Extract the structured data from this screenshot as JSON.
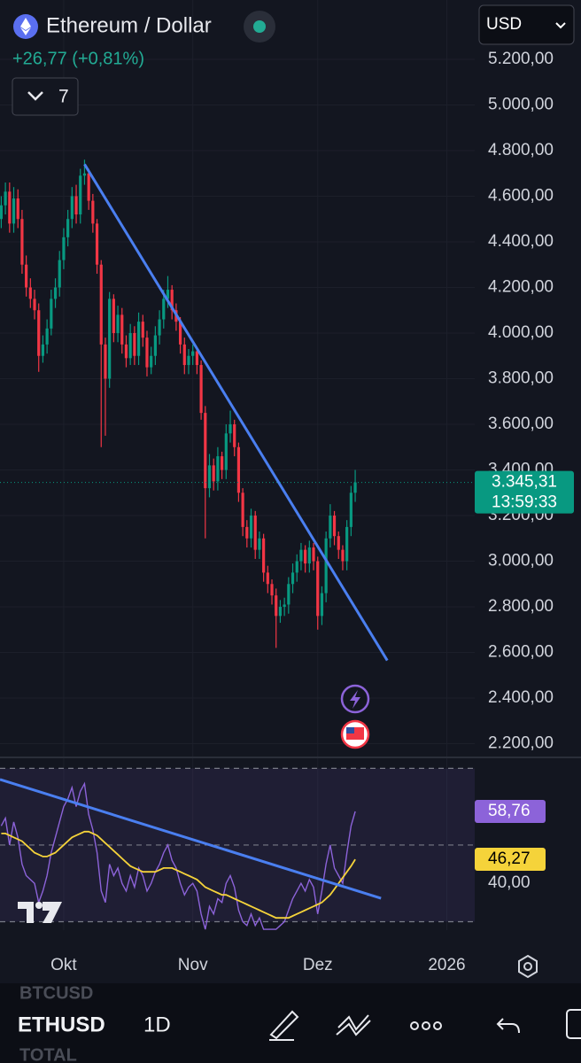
{
  "header": {
    "title": "Ethereum / Dollar",
    "change": "+26,77 (+0,81%)",
    "indicator_count": "7",
    "currency": "USD"
  },
  "chart_data": [
    {
      "type": "candlestick",
      "xlim": [
        -0.3,
        113.7
      ],
      "xticks": [
        {
          "value": 15,
          "label": "Okt"
        },
        {
          "value": 46,
          "label": "Nov"
        },
        {
          "value": 76,
          "label": "Dez"
        },
        {
          "value": 107,
          "label": "2026"
        }
      ],
      "ylim": [
        2140,
        5460
      ],
      "yticks": [
        {
          "value": 2200,
          "label": "2.200,00"
        },
        {
          "value": 2400,
          "label": "2.400,00"
        },
        {
          "value": 2600,
          "label": "2.600,00"
        },
        {
          "value": 2800,
          "label": "2.800,00"
        },
        {
          "value": 3000,
          "label": "3.000,00"
        },
        {
          "value": 3200,
          "label": "3.200,00"
        },
        {
          "value": 3400,
          "label": "3.400,00"
        },
        {
          "value": 3600,
          "label": "3.600,00"
        },
        {
          "value": 3800,
          "label": "3.800,00"
        },
        {
          "value": 4000,
          "label": "4.000,00"
        },
        {
          "value": 4200,
          "label": "4.200,00"
        },
        {
          "value": 4400,
          "label": "4.400,00"
        },
        {
          "value": 4600,
          "label": "4.600,00"
        },
        {
          "value": 4800,
          "label": "4.800,00"
        },
        {
          "value": 5000,
          "label": "5.000,00"
        },
        {
          "value": 5200,
          "label": "5.200,00"
        }
      ],
      "up_color": "#089981",
      "down_color": "#f23645",
      "open": [
        4500,
        4560,
        4620,
        4480,
        4590,
        4500,
        4300,
        4200,
        4150,
        4100,
        3900,
        3950,
        4020,
        4150,
        4200,
        4320,
        4420,
        4500,
        4600,
        4520,
        4690,
        4700,
        4580,
        4480,
        4300,
        3950,
        3800,
        4150,
        4000,
        4080,
        3950,
        3890,
        4000,
        3900,
        4050,
        3980,
        3850,
        3900,
        3990,
        4060,
        4150,
        4190,
        4100,
        4050,
        3950,
        3860,
        3900,
        3920,
        3860,
        3650,
        3320,
        3420,
        3350,
        3460,
        3400,
        3560,
        3600,
        3500,
        3300,
        3150,
        3100,
        3200,
        3050,
        3100,
        2950,
        2900,
        2850,
        2760,
        2800,
        2810,
        2900,
        2950,
        3000,
        3050,
        2990,
        3060,
        3000,
        2760,
        2860,
        3100,
        3200,
        3110,
        3050,
        3000,
        3150,
        3300
      ],
      "high": [
        4600,
        4660,
        4660,
        4640,
        4630,
        4540,
        4340,
        4240,
        4190,
        4130,
        3990,
        4060,
        4190,
        4240,
        4360,
        4460,
        4540,
        4640,
        4650,
        4720,
        4760,
        4720,
        4610,
        4500,
        4320,
        3980,
        4180,
        4170,
        4120,
        4110,
        3990,
        4040,
        4030,
        4090,
        4080,
        4010,
        3940,
        4030,
        4100,
        4190,
        4250,
        4210,
        4130,
        4070,
        3980,
        3930,
        3950,
        3940,
        3880,
        3680,
        3470,
        3450,
        3500,
        3480,
        3600,
        3660,
        3620,
        3520,
        3320,
        3180,
        3230,
        3220,
        3130,
        3120,
        2980,
        2920,
        2880,
        2830,
        2840,
        2930,
        2990,
        3030,
        3080,
        3070,
        3090,
        3080,
        3020,
        2890,
        3130,
        3250,
        3220,
        3130,
        3070,
        3180,
        3330,
        3400
      ],
      "low": [
        4460,
        4520,
        4440,
        4440,
        4460,
        4260,
        4160,
        4110,
        4060,
        3830,
        3870,
        3910,
        3990,
        4110,
        4160,
        4280,
        4380,
        4460,
        4480,
        4480,
        4650,
        4540,
        4440,
        4260,
        3500,
        3550,
        3760,
        3960,
        3960,
        3910,
        3850,
        3860,
        3860,
        3860,
        3940,
        3810,
        3820,
        3860,
        3950,
        4020,
        4110,
        4060,
        4010,
        3910,
        3820,
        3820,
        3860,
        3820,
        3620,
        3100,
        3280,
        3310,
        3310,
        3360,
        3360,
        3520,
        3460,
        3260,
        3110,
        3060,
        3060,
        3010,
        3010,
        2910,
        2860,
        2810,
        2620,
        2730,
        2760,
        2770,
        2860,
        2910,
        2960,
        2950,
        2950,
        2960,
        2700,
        2720,
        2820,
        3060,
        3070,
        3010,
        2960,
        2960,
        3110,
        3260
      ],
      "close": [
        4560,
        4620,
        4480,
        4590,
        4500,
        4300,
        4200,
        4150,
        4100,
        3900,
        3950,
        4020,
        4150,
        4200,
        4320,
        4420,
        4500,
        4600,
        4520,
        4690,
        4700,
        4580,
        4480,
        4300,
        3950,
        3800,
        4150,
        4000,
        4080,
        3950,
        3890,
        4000,
        3900,
        4050,
        3980,
        3850,
        3900,
        3990,
        4060,
        4150,
        4190,
        4100,
        4050,
        3950,
        3860,
        3900,
        3920,
        3860,
        3650,
        3320,
        3420,
        3350,
        3460,
        3400,
        3560,
        3600,
        3500,
        3300,
        3150,
        3100,
        3200,
        3050,
        3100,
        2950,
        2900,
        2850,
        2760,
        2800,
        2810,
        2900,
        2950,
        3000,
        3050,
        2990,
        3060,
        3000,
        2760,
        2860,
        3100,
        3200,
        3110,
        3050,
        3000,
        3150,
        3300,
        3345.31
      ],
      "last_price": {
        "value": 3345.31,
        "label": "3.345,31"
      },
      "countdown": "13:59:33",
      "trendline": {
        "x": [
          20,
          92.7
        ],
        "y": [
          4740,
          2565
        ],
        "color": "#4a7ff0"
      }
    },
    {
      "type": "line",
      "xlim": [
        -0.3,
        113.7
      ],
      "ylim": [
        27.8,
        71.7
      ],
      "yticks": [
        {
          "value": 40,
          "label": "40,00"
        }
      ],
      "levels": [
        70,
        50,
        30
      ],
      "series": [
        {
          "color": "#8c63d9",
          "last_value_label": "58,76",
          "values": [
            55,
            57,
            50,
            56,
            52,
            45,
            42,
            41,
            40,
            35,
            38,
            42,
            48,
            52,
            56,
            60,
            62,
            65,
            60,
            64,
            66,
            58,
            54,
            48,
            38,
            35,
            45,
            42,
            44,
            40,
            38,
            42,
            39,
            44,
            42,
            38,
            40,
            43,
            45,
            48,
            50,
            46,
            44,
            40,
            37,
            39,
            40,
            38,
            32,
            28,
            34,
            32,
            36,
            35,
            40,
            42,
            39,
            33,
            30,
            29,
            32,
            29,
            31,
            28,
            28,
            28,
            28,
            29,
            30,
            33,
            36,
            38,
            40,
            38,
            41,
            39,
            32,
            38,
            45,
            50,
            44,
            42,
            40,
            48,
            55,
            58.76
          ]
        },
        {
          "color": "#f5d33a",
          "last_value_label": "46,27",
          "values": [
            53,
            53,
            52.5,
            52,
            51.5,
            51,
            50,
            49,
            48,
            47.5,
            47,
            47,
            47.5,
            48,
            49,
            50,
            51,
            52,
            52.5,
            53,
            53.5,
            53.5,
            53,
            52.5,
            51.5,
            50.5,
            49.5,
            48.5,
            47.5,
            46.5,
            45.5,
            44.5,
            44,
            43.5,
            43,
            43,
            43,
            43,
            43.5,
            44,
            44,
            44,
            43.5,
            43,
            42.5,
            42,
            41.5,
            41,
            40,
            39,
            38.5,
            38,
            37.5,
            37,
            37,
            36.5,
            36,
            35.5,
            35,
            34.5,
            34,
            33.5,
            33,
            32.5,
            32,
            31.5,
            31,
            31,
            31,
            31,
            31.5,
            32,
            32.5,
            33,
            33.5,
            34,
            34.5,
            35,
            36,
            37,
            38.5,
            40,
            41.5,
            43,
            44.5,
            46.27
          ]
        }
      ],
      "trendline": {
        "x": [
          -0.3,
          91.2
        ],
        "y": [
          67.1,
          36.1
        ],
        "color": "#4a7ff0"
      }
    }
  ],
  "toolbar": {
    "above": "BTCUSD",
    "symbol": "ETHUSD",
    "below": "TOTAL",
    "interval": "1D"
  }
}
